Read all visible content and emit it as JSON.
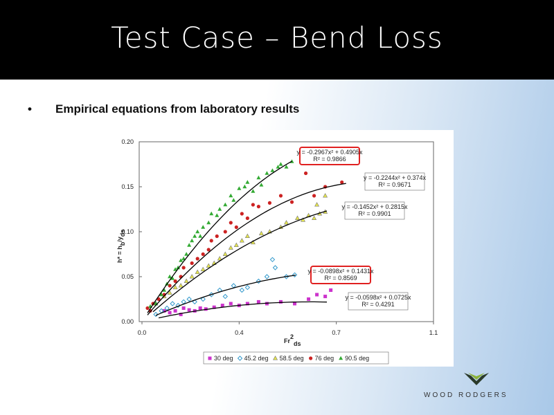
{
  "slide": {
    "title": "Test Case – Bend Loss",
    "bullets": [
      "Empirical equations from laboratory results"
    ],
    "logo": "WOOD RODGERS"
  },
  "chart_data": {
    "type": "scatter",
    "xlabel": [
      {
        "text": "Fr"
      },
      {
        "text": "2",
        "shift": "super"
      },
      {
        "text": "ds",
        "shift": "sub"
      }
    ],
    "ylabel": [
      {
        "text": "h* = h"
      },
      {
        "text": "b",
        "shift": "sub"
      },
      {
        "text": "/y"
      },
      {
        "text": "ds",
        "shift": "sub"
      }
    ],
    "xlim": [
      0,
      1.05
    ],
    "xticks": [
      {
        "value": 0,
        "label": "0.0"
      },
      {
        "value": 0.35,
        "label": "0.4"
      },
      {
        "value": 0.7,
        "label": "0.7"
      },
      {
        "value": 1.05,
        "label": "1.1"
      }
    ],
    "ylim": [
      0,
      0.2
    ],
    "yticks": [
      {
        "value": 0,
        "label": "0.00"
      },
      0.05,
      {
        "value": 0.1,
        "label": "0.10"
      },
      0.15,
      {
        "value": 0.2,
        "label": "0.20"
      }
    ],
    "grid": false,
    "legend": "bottom",
    "series": [
      {
        "name": "30 deg",
        "color": "#cc33cc",
        "marker": "square",
        "x": [
          0.08,
          0.1,
          0.12,
          0.14,
          0.15,
          0.17,
          0.19,
          0.21,
          0.23,
          0.26,
          0.29,
          0.32,
          0.35,
          0.38,
          0.42,
          0.45,
          0.5,
          0.55,
          0.6,
          0.63,
          0.66,
          0.68
        ],
        "values": [
          0.012,
          0.01,
          0.012,
          0.008,
          0.015,
          0.013,
          0.012,
          0.015,
          0.014,
          0.016,
          0.018,
          0.02,
          0.018,
          0.02,
          0.022,
          0.02,
          0.022,
          0.02,
          0.025,
          0.03,
          0.028,
          0.035
        ],
        "trend": {
          "a": -0.0598,
          "b": 0.0725,
          "x_range": [
            0.06,
            0.666
          ],
          "equation": "y = -0.0598x² + 0.0725x",
          "r2": "R² = 0.4291",
          "highlight": false
        }
      },
      {
        "name": "45.2 deg",
        "color": "#3399cc",
        "marker": "diamond",
        "x": [
          0.05,
          0.07,
          0.09,
          0.11,
          0.13,
          0.15,
          0.17,
          0.19,
          0.22,
          0.25,
          0.28,
          0.3,
          0.33,
          0.36,
          0.38,
          0.42,
          0.45,
          0.47,
          0.48,
          0.52,
          0.55
        ],
        "values": [
          0.008,
          0.012,
          0.015,
          0.02,
          0.018,
          0.022,
          0.025,
          0.022,
          0.025,
          0.03,
          0.035,
          0.028,
          0.04,
          0.035,
          0.038,
          0.045,
          0.05,
          0.069,
          0.06,
          0.05,
          0.052
        ],
        "trend": {
          "a": -0.0898,
          "b": 0.1431,
          "x_range": [
            0.05,
            0.553
          ],
          "equation": "y = -0.0898x² + 0.1431x",
          "r2": "R² = 0.8569",
          "highlight": true
        }
      },
      {
        "name": "58.5 deg",
        "color": "#e6e64c",
        "marker": "triangle",
        "x": [
          0.05,
          0.08,
          0.1,
          0.12,
          0.14,
          0.16,
          0.18,
          0.2,
          0.22,
          0.24,
          0.26,
          0.28,
          0.3,
          0.32,
          0.34,
          0.36,
          0.38,
          0.4,
          0.43,
          0.46,
          0.5,
          0.52,
          0.56,
          0.58,
          0.6,
          0.62,
          0.63,
          0.64,
          0.66,
          0.66
        ],
        "values": [
          0.02,
          0.028,
          0.032,
          0.038,
          0.04,
          0.045,
          0.05,
          0.055,
          0.058,
          0.062,
          0.065,
          0.07,
          0.075,
          0.082,
          0.085,
          0.09,
          0.095,
          0.088,
          0.098,
          0.1,
          0.105,
          0.11,
          0.115,
          0.113,
          0.118,
          0.115,
          0.13,
          0.12,
          0.122,
          0.14
        ],
        "trend": {
          "a": -0.1452,
          "b": 0.2815,
          "x_range": [
            0.04,
            0.666
          ],
          "equation": "y = -0.1452x² + 0.2815x",
          "r2": "R² = 0.9901",
          "highlight": false
        }
      },
      {
        "name": "76 deg",
        "color": "#cc2222",
        "marker": "circle",
        "x": [
          0.02,
          0.03,
          0.04,
          0.06,
          0.08,
          0.1,
          0.12,
          0.14,
          0.15,
          0.18,
          0.2,
          0.22,
          0.24,
          0.25,
          0.27,
          0.3,
          0.32,
          0.34,
          0.36,
          0.38,
          0.4,
          0.42,
          0.46,
          0.5,
          0.54,
          0.59,
          0.62,
          0.66,
          0.72
        ],
        "values": [
          0.015,
          0.012,
          0.02,
          0.025,
          0.03,
          0.04,
          0.045,
          0.05,
          0.06,
          0.065,
          0.07,
          0.075,
          0.08,
          0.09,
          0.095,
          0.1,
          0.11,
          0.105,
          0.12,
          0.115,
          0.13,
          0.128,
          0.132,
          0.14,
          0.133,
          0.165,
          0.14,
          0.15,
          0.155
        ],
        "trend": {
          "a": -0.2244,
          "b": 0.374,
          "x_range": [
            0.02,
            0.735
          ],
          "equation": "y = -0.2244x² + 0.374x",
          "r2": "R² = 0.9671",
          "highlight": false
        }
      },
      {
        "name": "90.5 deg",
        "color": "#33aa33",
        "marker": "triangle",
        "x": [
          0.03,
          0.05,
          0.07,
          0.08,
          0.09,
          0.1,
          0.11,
          0.12,
          0.13,
          0.14,
          0.15,
          0.16,
          0.17,
          0.18,
          0.19,
          0.2,
          0.21,
          0.22,
          0.24,
          0.25,
          0.27,
          0.28,
          0.3,
          0.32,
          0.33,
          0.35,
          0.37,
          0.38,
          0.4,
          0.42,
          0.43,
          0.45,
          0.47,
          0.49,
          0.5,
          0.52,
          0.54
        ],
        "values": [
          0.017,
          0.02,
          0.03,
          0.035,
          0.042,
          0.05,
          0.048,
          0.058,
          0.06,
          0.068,
          0.07,
          0.075,
          0.085,
          0.09,
          0.095,
          0.1,
          0.095,
          0.105,
          0.11,
          0.12,
          0.118,
          0.125,
          0.13,
          0.14,
          0.135,
          0.148,
          0.15,
          0.155,
          0.145,
          0.16,
          0.152,
          0.165,
          0.168,
          0.172,
          0.175,
          0.172,
          0.178
        ],
        "trend": {
          "a": -0.2967,
          "b": 0.4905,
          "x_range": [
            0.02,
            0.54
          ],
          "equation": "y = -0.2967x² + 0.4905x",
          "r2": "R² = 0.9866",
          "highlight": true
        }
      }
    ]
  }
}
